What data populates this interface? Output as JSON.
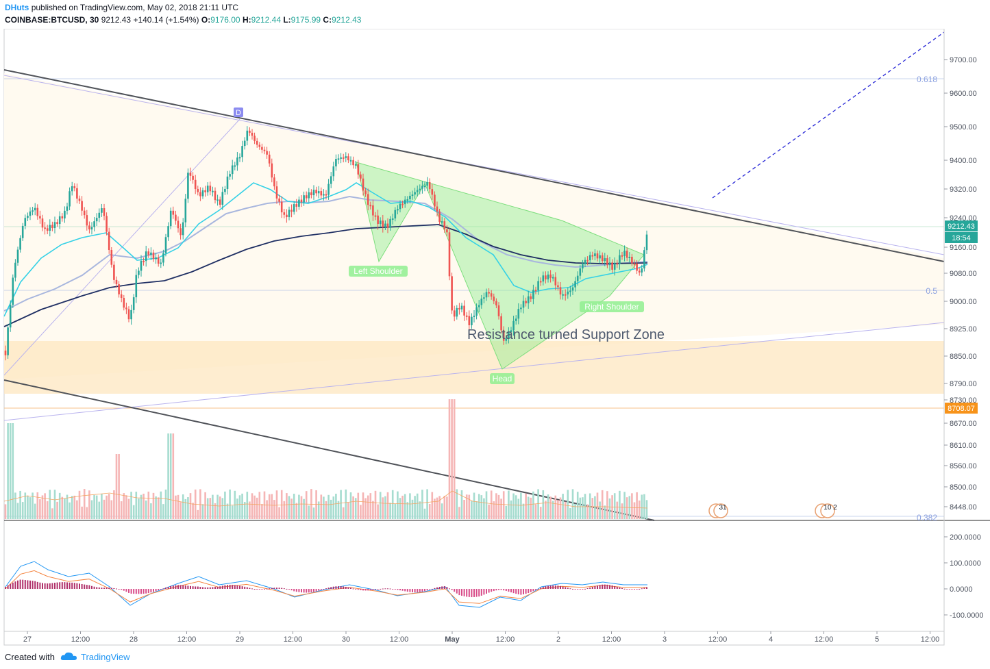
{
  "header": {
    "author": "DHuts",
    "published": "published on TradingView.com, May 02, 2018 21:11 UTC",
    "symbol": "COINBASE:BTCUSD, 30",
    "last": "9212.43",
    "change": "+140.14 (+1.54%)",
    "o_label": "O:",
    "o_val": "9176.00",
    "h_label": "H:",
    "h_val": "9212.44",
    "l_label": "L:",
    "l_val": "9175.99",
    "c_label": "C:",
    "c_val": "9212.43"
  },
  "price_axis": [
    "9700.00",
    "9600.00",
    "9500.00",
    "9400.00",
    "9320.00",
    "9240.00",
    "9160.00",
    "9080.00",
    "9000.00",
    "8925.00",
    "8850.00",
    "8790.00",
    "8730.00",
    "8670.00",
    "8610.00",
    "8560.00",
    "8500.00",
    "8448.00"
  ],
  "macd_axis": [
    "200.0000",
    "100.0000",
    "0.0000",
    "-100.0000"
  ],
  "time_axis": [
    "27",
    "12:00",
    "28",
    "12:00",
    "29",
    "12:00",
    "30",
    "12:00",
    "May",
    "12:00",
    "2",
    "12:00",
    "3",
    "12:00",
    "4",
    "12:00",
    "5",
    "12:00"
  ],
  "fib": {
    "f618": "0.618",
    "f5": "0.5",
    "f382": "0.382"
  },
  "price_tags": {
    "last": "9212.43",
    "countdown": "18:54",
    "level": "8708.07"
  },
  "annotations": {
    "left_shoulder": "Left Shoulder",
    "right_shoulder": "Right Shoulder",
    "head": "Head",
    "zone": "Resistance turned Support Zone",
    "point_d": "D"
  },
  "events": {
    "e1": "31",
    "e2": "10 2"
  },
  "footer": {
    "created": "Created with",
    "brand": "TradingView"
  },
  "colors": {
    "up": "#26a69a",
    "down": "#ef5350",
    "accent": "#2196f3",
    "pattern": "#90ee90",
    "zone": "#fde7c0"
  }
}
